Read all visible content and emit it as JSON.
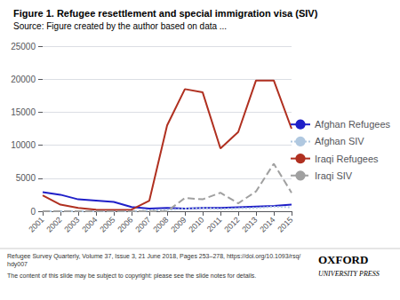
{
  "chart_data": {
    "type": "line",
    "title": "Figure 1. Refugee resettlement and special immigration visa (SIV)",
    "subtitle": "Source: Figure created by the author based on data ...",
    "x": [
      2001,
      2002,
      2003,
      2004,
      2005,
      2006,
      2007,
      2008,
      2009,
      2010,
      2011,
      2012,
      2013,
      2014,
      2015
    ],
    "series": [
      {
        "name": "Afghan Refugees",
        "color": "#1f1fc8",
        "line_style": "solid",
        "values": [
          2900,
          2500,
          1800,
          1600,
          1400,
          650,
          400,
          500,
          400,
          500,
          500,
          600,
          700,
          800,
          1000
        ]
      },
      {
        "name": "Afghan SIV",
        "color": "#b0c8e0",
        "line_style": "dotted",
        "values": [
          0,
          0,
          0,
          0,
          0,
          0,
          100,
          200,
          400,
          500,
          350,
          450,
          500,
          700,
          600
        ]
      },
      {
        "name": "Iraqi Refugees",
        "color": "#b03020",
        "line_style": "solid",
        "values": [
          2400,
          1000,
          500,
          250,
          200,
          250,
          1600,
          13000,
          18500,
          18000,
          9500,
          12000,
          19800,
          19800,
          12500
        ]
      },
      {
        "name": "Iraqi SIV",
        "color": "#a0a0a0",
        "line_style": "dashed",
        "values": [
          0,
          0,
          0,
          0,
          0,
          0,
          0,
          0,
          2000,
          1800,
          2800,
          1200,
          3000,
          7200,
          2800
        ]
      }
    ],
    "xlim": [
      2001,
      2015
    ],
    "xticks": [
      2001,
      2002,
      2003,
      2004,
      2005,
      2006,
      2007,
      2008,
      2009,
      2010,
      2011,
      2012,
      2013,
      2014,
      2015
    ],
    "ylim": [
      0,
      25000
    ],
    "yticks": [
      0,
      5000,
      10000,
      15000,
      20000,
      25000
    ],
    "grid": true,
    "legend": "right",
    "annotations": [
      "Refugee Survey Quarterly, Volume 37, Issue 3, 21 June 2018, Pages 253–278, https://doi.org/10.1093/rsq/hdy007",
      "The content of this slide may be subject to copyright: please see the slide notes for details.",
      "OXFORD",
      "UNIVERSITY PRESS"
    ]
  }
}
